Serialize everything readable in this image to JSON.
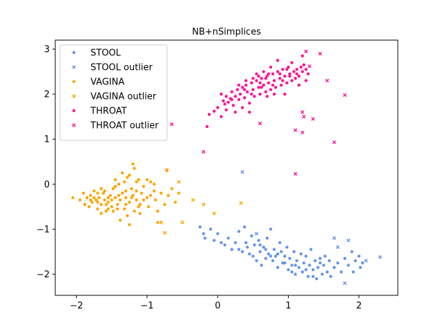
{
  "chart_data": {
    "type": "scatter",
    "title": "NB+nSimplices",
    "xlabel": "",
    "ylabel": "",
    "xlim": [
      -2.3,
      2.55
    ],
    "ylim": [
      -2.47,
      3.2
    ],
    "xticks": [
      -2,
      -1,
      0,
      1,
      2
    ],
    "yticks": [
      -2,
      -1,
      0,
      1,
      2,
      3
    ],
    "legend": "top-left",
    "series": [
      {
        "name": "STOOL",
        "marker": "circle",
        "color": "#6495ed",
        "points": [
          [
            -0.25,
            -0.95
          ],
          [
            -0.2,
            -1.1
          ],
          [
            -0.18,
            -1.2
          ],
          [
            -0.1,
            -1.0
          ],
          [
            -0.05,
            -1.25
          ],
          [
            0.0,
            -1.1
          ],
          [
            0.05,
            -1.3
          ],
          [
            0.1,
            -1.35
          ],
          [
            0.15,
            -1.2
          ],
          [
            0.2,
            -1.45
          ],
          [
            0.25,
            -1.3
          ],
          [
            0.3,
            -1.05
          ],
          [
            0.35,
            -1.5
          ],
          [
            0.38,
            -0.95
          ],
          [
            0.42,
            -1.4
          ],
          [
            0.45,
            -1.55
          ],
          [
            0.48,
            -1.15
          ],
          [
            0.5,
            -1.6
          ],
          [
            0.52,
            -1.35
          ],
          [
            0.55,
            -1.7
          ],
          [
            0.58,
            -1.25
          ],
          [
            0.6,
            -1.5
          ],
          [
            0.62,
            -1.8
          ],
          [
            0.65,
            -1.4
          ],
          [
            0.68,
            -1.65
          ],
          [
            0.7,
            -1.2
          ],
          [
            0.72,
            -1.55
          ],
          [
            0.75,
            -1.0
          ],
          [
            0.78,
            -1.7
          ],
          [
            0.8,
            -1.45
          ],
          [
            0.82,
            -1.6
          ],
          [
            0.85,
            -1.85
          ],
          [
            0.88,
            -1.3
          ],
          [
            0.9,
            -1.5
          ],
          [
            0.92,
            -1.75
          ],
          [
            0.95,
            -1.6
          ],
          [
            0.98,
            -1.4
          ],
          [
            1.0,
            -1.9
          ],
          [
            1.02,
            -1.65
          ],
          [
            1.05,
            -1.8
          ],
          [
            1.08,
            -1.5
          ],
          [
            1.1,
            -2.0
          ],
          [
            1.12,
            -1.7
          ],
          [
            1.15,
            -1.85
          ],
          [
            1.18,
            -1.55
          ],
          [
            1.2,
            -1.95
          ],
          [
            1.22,
            -1.75
          ],
          [
            1.25,
            -1.6
          ],
          [
            1.28,
            -2.05
          ],
          [
            1.3,
            -1.8
          ],
          [
            1.32,
            -1.45
          ],
          [
            1.35,
            -1.9
          ],
          [
            1.38,
            -1.7
          ],
          [
            1.4,
            -2.1
          ],
          [
            1.42,
            -1.85
          ],
          [
            1.45,
            -1.75
          ],
          [
            1.48,
            -2.0
          ],
          [
            1.5,
            -1.8
          ],
          [
            1.52,
            -1.6
          ],
          [
            1.55,
            -1.95
          ],
          [
            1.58,
            -1.7
          ],
          [
            1.6,
            -2.05
          ],
          [
            1.65,
            -1.85
          ],
          [
            1.7,
            -1.75
          ],
          [
            1.75,
            -1.95
          ],
          [
            1.8,
            -1.65
          ],
          [
            1.85,
            -1.8
          ],
          [
            1.9,
            -1.5
          ],
          [
            1.92,
            -1.95
          ],
          [
            1.95,
            -1.7
          ],
          [
            2.0,
            -1.6
          ],
          [
            2.02,
            -1.85
          ],
          [
            2.05,
            -1.75
          ],
          [
            0.3,
            -1.45
          ],
          [
            0.6,
            -1.35
          ],
          [
            0.95,
            -1.75
          ],
          [
            1.25,
            -1.9
          ],
          [
            1.45,
            -1.65
          ],
          [
            1.1,
            -1.8
          ],
          [
            0.85,
            -1.55
          ],
          [
            1.05,
            -1.95
          ],
          [
            0.75,
            -1.6
          ],
          [
            1.35,
            -2.05
          ],
          [
            0.4,
            -1.3
          ],
          [
            0.68,
            -1.45
          ]
        ]
      },
      {
        "name": "STOOL outlier",
        "marker": "x",
        "color": "#6495ed",
        "points": [
          [
            0.35,
            0.27
          ],
          [
            1.65,
            -1.2
          ],
          [
            1.85,
            -1.25
          ],
          [
            2.1,
            -1.7
          ],
          [
            2.3,
            -1.62
          ],
          [
            1.8,
            -2.2
          ],
          [
            0.55,
            -1.1
          ],
          [
            1.7,
            -1.4
          ]
        ]
      },
      {
        "name": "VAGINA",
        "marker": "circle",
        "color": "#ffa500",
        "points": [
          [
            -2.05,
            -0.3
          ],
          [
            -1.95,
            -0.35
          ],
          [
            -1.9,
            -0.2
          ],
          [
            -1.88,
            -0.45
          ],
          [
            -1.85,
            -0.3
          ],
          [
            -1.82,
            -0.5
          ],
          [
            -1.8,
            -0.25
          ],
          [
            -1.78,
            -0.4
          ],
          [
            -1.75,
            -0.15
          ],
          [
            -1.72,
            -0.35
          ],
          [
            -1.7,
            -0.55
          ],
          [
            -1.68,
            -0.3
          ],
          [
            -1.65,
            -0.45
          ],
          [
            -1.62,
            -0.2
          ],
          [
            -1.6,
            -0.35
          ],
          [
            -1.58,
            -0.6
          ],
          [
            -1.55,
            -0.4
          ],
          [
            -1.52,
            -0.25
          ],
          [
            -1.5,
            -0.5
          ],
          [
            -1.48,
            -0.1
          ],
          [
            -1.45,
            -0.3
          ],
          [
            -1.42,
            -0.45
          ],
          [
            -1.4,
            0.0
          ],
          [
            -1.38,
            -0.35
          ],
          [
            -1.35,
            -0.2
          ],
          [
            -1.32,
            -0.55
          ],
          [
            -1.3,
            -0.3
          ],
          [
            -1.28,
            0.15
          ],
          [
            -1.25,
            -0.4
          ],
          [
            -1.22,
            -0.1
          ],
          [
            -1.2,
            -0.25
          ],
          [
            -1.18,
            -0.6
          ],
          [
            -1.15,
            -0.35
          ],
          [
            -1.12,
            0.1
          ],
          [
            -1.1,
            -0.45
          ],
          [
            -1.08,
            -0.2
          ],
          [
            -1.05,
            -0.05
          ],
          [
            -1.0,
            -0.3
          ],
          [
            -0.98,
            -0.5
          ],
          [
            -0.95,
            0.05
          ],
          [
            -0.9,
            -0.15
          ],
          [
            -0.88,
            -0.35
          ],
          [
            -0.85,
            -0.6
          ],
          [
            -0.8,
            -0.2
          ],
          [
            -0.75,
            -0.45
          ],
          [
            -0.72,
            0.3
          ],
          [
            -0.7,
            -0.25
          ],
          [
            -0.65,
            -0.1
          ],
          [
            -0.6,
            -0.4
          ],
          [
            -0.55,
            -0.2
          ],
          [
            -1.55,
            -0.3
          ],
          [
            -1.6,
            -0.15
          ],
          [
            -1.7,
            -0.4
          ],
          [
            -1.75,
            -0.3
          ],
          [
            -1.5,
            -0.35
          ],
          [
            -1.4,
            -0.25
          ],
          [
            -1.3,
            -0.45
          ],
          [
            -1.45,
            0.1
          ],
          [
            -1.35,
            0.25
          ],
          [
            -1.25,
            0.2
          ],
          [
            -1.15,
            -0.15
          ],
          [
            -1.05,
            -0.35
          ],
          [
            -1.2,
            0.45
          ],
          [
            -1.65,
            -0.1
          ],
          [
            -1.8,
            -0.35
          ],
          [
            -1.58,
            -0.45
          ],
          [
            -1.42,
            -0.55
          ],
          [
            -1.32,
            0.05
          ],
          [
            -1.22,
            -0.3
          ],
          [
            -1.12,
            -0.5
          ],
          [
            -0.95,
            -0.25
          ],
          [
            -1.28,
            -0.7
          ],
          [
            -1.1,
            -0.65
          ],
          [
            -1.48,
            -0.6
          ],
          [
            -0.85,
            -0.85
          ],
          [
            -1.38,
            -0.8
          ],
          [
            -1.25,
            -0.9
          ],
          [
            -1.18,
            0.35
          ],
          [
            -1.0,
            0.1
          ],
          [
            -1.55,
            -0.55
          ],
          [
            -1.65,
            -0.65
          ],
          [
            -1.7,
            -0.2
          ],
          [
            -1.45,
            -0.05
          ],
          [
            -1.3,
            -0.15
          ],
          [
            -0.9,
            0.0
          ],
          [
            -1.15,
            0.05
          ]
        ]
      },
      {
        "name": "VAGINA outlier",
        "marker": "x",
        "color": "#ffa500",
        "points": [
          [
            0.33,
            -0.42
          ],
          [
            -0.8,
            -0.85
          ],
          [
            -0.5,
            -0.85
          ],
          [
            -0.35,
            -0.35
          ],
          [
            -0.75,
            -1.08
          ],
          [
            -0.05,
            -0.65
          ],
          [
            -0.72,
            0.32
          ],
          [
            -0.2,
            -0.45
          ],
          [
            -0.55,
            0.05
          ]
        ]
      },
      {
        "name": "THROAT",
        "marker": "circle",
        "color": "#ff1493",
        "points": [
          [
            -0.15,
            1.28
          ],
          [
            -0.12,
            1.55
          ],
          [
            -0.05,
            1.62
          ],
          [
            0.0,
            1.7
          ],
          [
            0.05,
            1.5
          ],
          [
            0.08,
            1.85
          ],
          [
            0.1,
            1.78
          ],
          [
            0.12,
            1.95
          ],
          [
            0.15,
            1.82
          ],
          [
            0.18,
            1.9
          ],
          [
            0.2,
            2.05
          ],
          [
            0.22,
            1.75
          ],
          [
            0.25,
            1.95
          ],
          [
            0.28,
            2.1
          ],
          [
            0.3,
            1.88
          ],
          [
            0.32,
            2.0
          ],
          [
            0.35,
            2.15
          ],
          [
            0.38,
            1.92
          ],
          [
            0.4,
            2.2
          ],
          [
            0.42,
            2.05
          ],
          [
            0.45,
            1.8
          ],
          [
            0.48,
            2.25
          ],
          [
            0.5,
            2.1
          ],
          [
            0.52,
            1.95
          ],
          [
            0.55,
            2.3
          ],
          [
            0.58,
            2.15
          ],
          [
            0.6,
            2.0
          ],
          [
            0.62,
            2.35
          ],
          [
            0.65,
            2.2
          ],
          [
            0.68,
            2.05
          ],
          [
            0.7,
            2.4
          ],
          [
            0.72,
            2.25
          ],
          [
            0.75,
            2.1
          ],
          [
            0.78,
            2.45
          ],
          [
            0.8,
            2.3
          ],
          [
            0.82,
            2.15
          ],
          [
            0.85,
            2.5
          ],
          [
            0.88,
            2.35
          ],
          [
            0.9,
            2.2
          ],
          [
            0.92,
            2.55
          ],
          [
            0.95,
            2.4
          ],
          [
            0.98,
            2.25
          ],
          [
            1.0,
            2.6
          ],
          [
            1.02,
            2.45
          ],
          [
            1.05,
            2.3
          ],
          [
            1.08,
            2.5
          ],
          [
            1.1,
            2.35
          ],
          [
            1.12,
            2.55
          ],
          [
            1.15,
            2.4
          ],
          [
            1.18,
            2.6
          ],
          [
            1.2,
            2.5
          ],
          [
            1.22,
            2.65
          ],
          [
            1.25,
            2.55
          ],
          [
            1.28,
            2.45
          ],
          [
            0.25,
            1.6
          ],
          [
            0.35,
            1.7
          ],
          [
            0.45,
            1.6
          ],
          [
            0.55,
            2.45
          ],
          [
            0.65,
            2.5
          ],
          [
            0.75,
            2.6
          ],
          [
            0.85,
            2.75
          ],
          [
            0.7,
            1.95
          ],
          [
            0.6,
            2.25
          ],
          [
            0.5,
            2.35
          ],
          [
            0.4,
            2.3
          ],
          [
            0.3,
            2.2
          ],
          [
            0.95,
            2.0
          ],
          [
            1.05,
            2.7
          ],
          [
            1.15,
            2.2
          ],
          [
            0.8,
            2.0
          ],
          [
            0.48,
            2.0
          ],
          [
            0.58,
            2.4
          ],
          [
            0.68,
            2.35
          ],
          [
            0.78,
            2.2
          ],
          [
            0.88,
            2.45
          ],
          [
            0.98,
            2.55
          ],
          [
            0.12,
            1.65
          ],
          [
            0.2,
            1.88
          ],
          [
            0.05,
            2.0
          ],
          [
            0.38,
            2.1
          ],
          [
            0.62,
            2.15
          ],
          [
            0.72,
            2.45
          ],
          [
            0.92,
            2.3
          ],
          [
            1.02,
            2.4
          ],
          [
            1.12,
            2.45
          ],
          [
            1.2,
            2.85
          ],
          [
            1.25,
            2.3
          ]
        ]
      },
      {
        "name": "THROAT outlier",
        "marker": "x",
        "color": "#ff1493",
        "points": [
          [
            -0.65,
            1.33
          ],
          [
            -0.2,
            0.72
          ],
          [
            0.6,
            1.35
          ],
          [
            1.1,
            0.23
          ],
          [
            1.65,
            0.93
          ],
          [
            1.45,
            2.9
          ],
          [
            1.55,
            2.3
          ],
          [
            1.8,
            1.98
          ],
          [
            1.2,
            1.6
          ],
          [
            1.1,
            1.2
          ],
          [
            1.2,
            1.15
          ],
          [
            1.35,
            1.45
          ],
          [
            1.25,
            2.95
          ],
          [
            1.22,
            1.5
          ],
          [
            1.3,
            2.62
          ]
        ]
      }
    ]
  }
}
